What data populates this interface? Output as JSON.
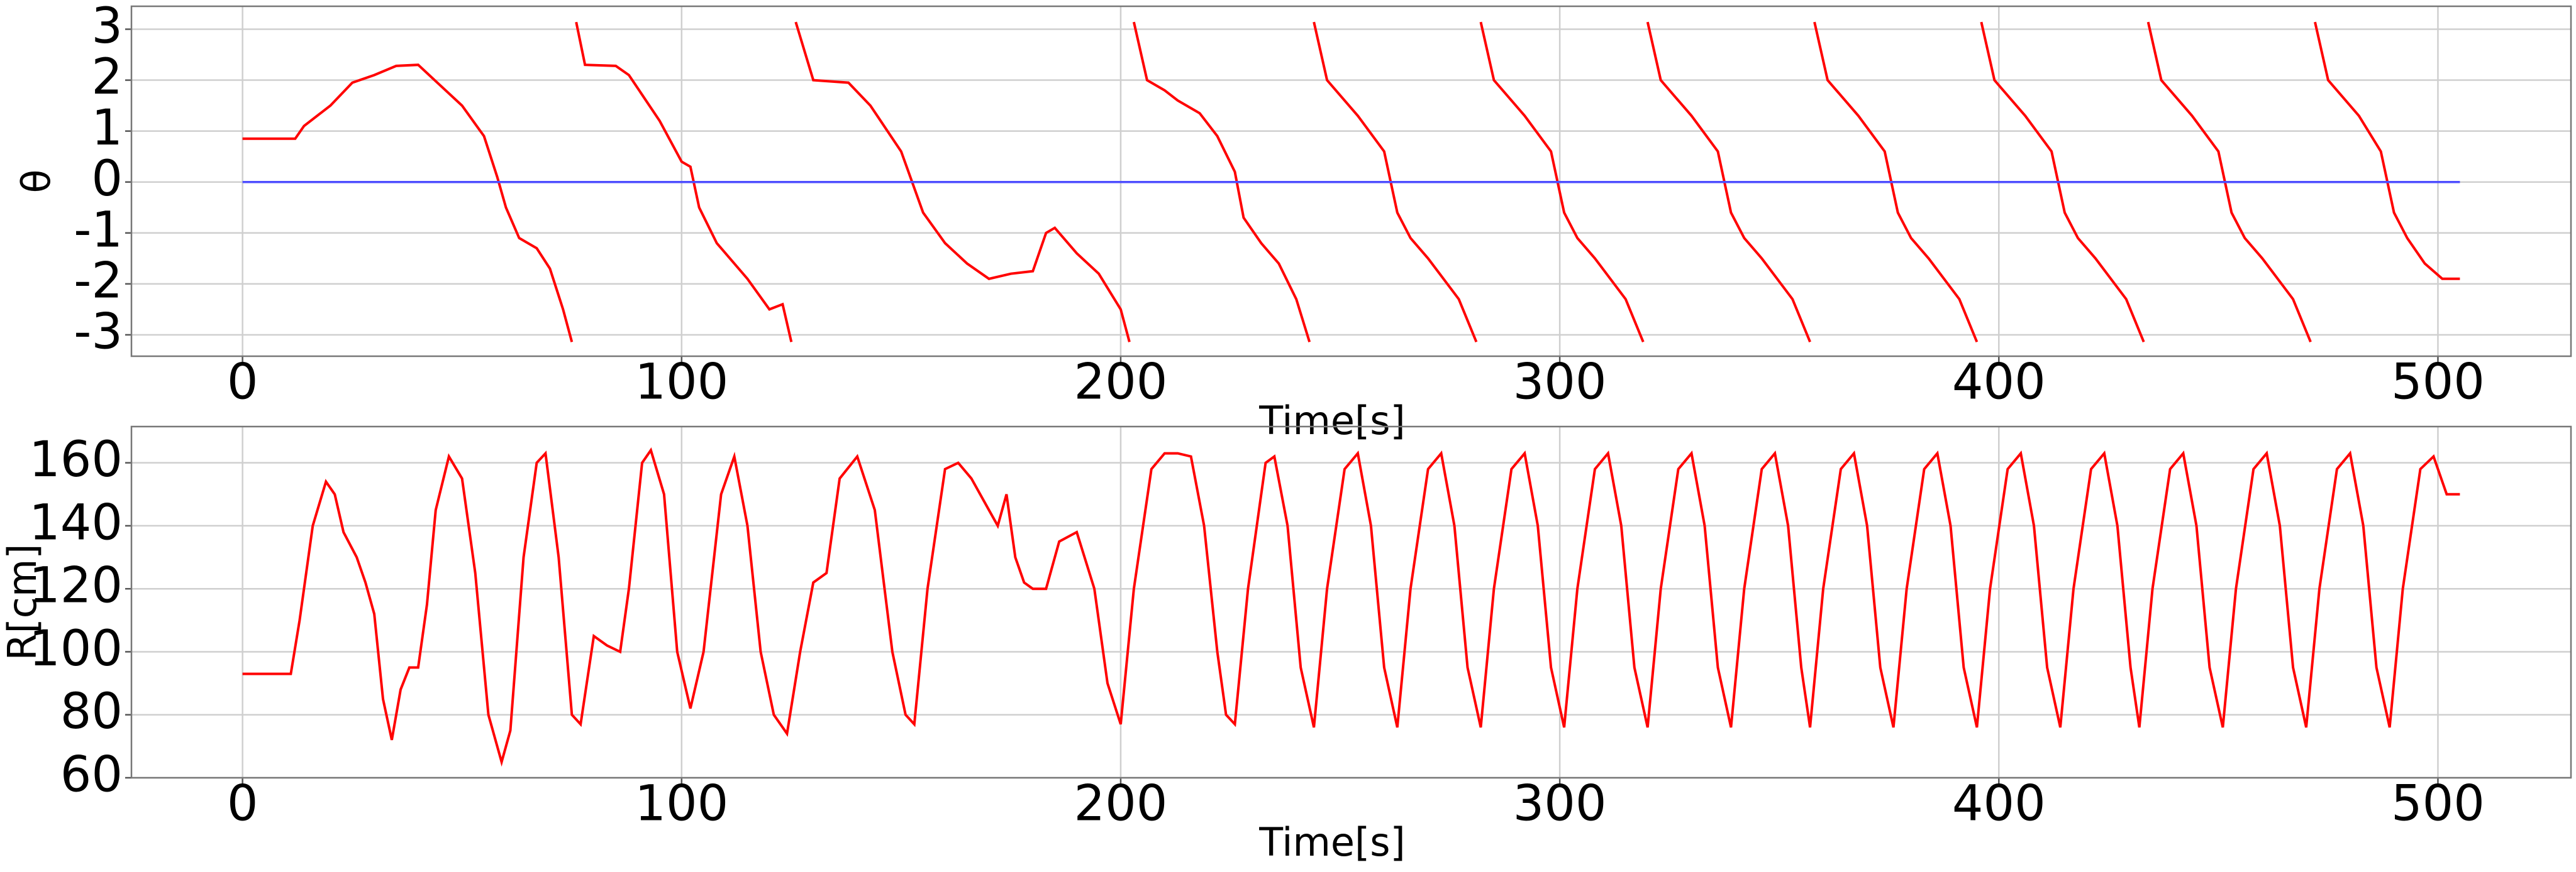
{
  "chart_data": [
    {
      "type": "line",
      "ylabel": "θ",
      "xlabel": "Time[s]",
      "grid": true,
      "xlim": [
        -25.3,
        530.3
      ],
      "ylim": [
        -3.42,
        3.45
      ],
      "xticks": [
        0,
        100,
        200,
        300,
        400,
        500
      ],
      "yticks": [
        -3,
        -2,
        -1,
        0,
        1,
        2,
        3
      ],
      "series": [
        {
          "color": "#ff0000",
          "x": [
            0,
            12,
            14,
            20,
            25,
            30,
            35,
            40,
            45,
            50,
            55,
            58,
            60,
            63,
            67,
            70,
            73,
            75,
            75,
            76,
            78,
            85,
            88,
            95,
            100,
            102,
            104,
            108,
            115,
            120,
            123,
            125,
            125,
            126,
            130,
            138,
            143,
            150,
            155,
            160,
            165,
            170,
            175,
            180,
            183,
            185,
            190,
            195,
            200,
            202,
            202,
            203,
            206,
            210,
            213,
            218,
            222,
            226,
            228,
            232,
            236,
            240,
            243,
            243,
            244,
            247,
            254,
            260,
            263,
            266,
            270,
            277,
            281,
            281,
            282,
            285,
            292,
            298,
            301,
            304,
            308,
            315,
            319,
            319,
            320,
            323,
            330,
            336,
            339,
            342,
            346,
            353,
            357,
            357,
            358,
            361,
            368,
            374,
            377,
            380,
            384,
            391,
            395,
            395,
            396,
            399,
            406,
            412,
            415,
            418,
            422,
            429,
            433,
            433,
            434,
            437,
            444,
            450,
            453,
            456,
            460,
            467,
            471,
            471,
            472,
            475,
            482,
            487,
            490,
            493,
            497,
            501,
            505
          ],
          "values": [
            0.85,
            0.85,
            1.1,
            1.5,
            1.95,
            2.1,
            2.28,
            2.3,
            1.9,
            1.5,
            0.9,
            0.1,
            -0.5,
            -1.1,
            -1.3,
            -1.7,
            -2.5,
            -3.14,
            null,
            3.14,
            2.3,
            2.28,
            2.1,
            1.2,
            0.4,
            0.3,
            -0.5,
            -1.2,
            -1.9,
            -2.5,
            -2.4,
            -3.14,
            null,
            3.14,
            2.0,
            1.95,
            1.5,
            0.6,
            -0.6,
            -1.2,
            -1.6,
            -1.9,
            -1.8,
            -1.75,
            -1.0,
            -0.9,
            -1.4,
            -1.8,
            -2.5,
            -3.14,
            null,
            3.14,
            2.0,
            1.8,
            1.6,
            1.35,
            0.9,
            0.2,
            -0.7,
            -1.2,
            -1.6,
            -2.3,
            -3.14,
            null,
            3.14,
            2.0,
            1.3,
            0.6,
            -0.6,
            -1.1,
            -1.5,
            -2.3,
            -3.14,
            null,
            3.14,
            2.0,
            1.3,
            0.6,
            -0.6,
            -1.1,
            -1.5,
            -2.3,
            -3.14,
            null,
            3.14,
            2.0,
            1.3,
            0.6,
            -0.6,
            -1.1,
            -1.5,
            -2.3,
            -3.14,
            null,
            3.14,
            2.0,
            1.3,
            0.6,
            -0.6,
            -1.1,
            -1.5,
            -2.3,
            -3.14,
            null,
            3.14,
            2.0,
            1.3,
            0.6,
            -0.6,
            -1.1,
            -1.5,
            -2.3,
            -3.14,
            null,
            3.14,
            2.0,
            1.3,
            0.6,
            -0.6,
            -1.1,
            -1.5,
            -2.3,
            -3.14,
            null,
            3.14,
            2.0,
            1.3,
            0.6,
            -0.6,
            -1.1,
            -1.6,
            -1.9,
            -1.9
          ]
        },
        {
          "color": "#4d4dff",
          "x": [
            0,
            505
          ],
          "values": [
            0,
            0
          ]
        }
      ]
    },
    {
      "type": "line",
      "ylabel": "R[cm]",
      "xlabel": "Time[s]",
      "grid": true,
      "xlim": [
        -25.3,
        530.3
      ],
      "ylim": [
        60,
        171.5
      ],
      "xticks": [
        0,
        100,
        200,
        300,
        400,
        500
      ],
      "yticks": [
        60,
        80,
        100,
        120,
        140,
        160
      ],
      "series": [
        {
          "color": "#ff0000",
          "x": [
            0,
            11,
            13,
            16,
            19,
            21,
            23,
            26,
            28,
            30,
            32,
            34,
            36,
            38,
            40,
            42,
            44,
            47,
            50,
            53,
            56,
            59,
            61,
            64,
            67,
            69,
            72,
            75,
            77,
            80,
            83,
            86,
            88,
            91,
            93,
            96,
            99,
            102,
            105,
            109,
            112,
            115,
            118,
            121,
            124,
            127,
            130,
            133,
            136,
            140,
            144,
            148,
            151,
            153,
            156,
            160,
            163,
            166,
            170,
            172,
            174,
            176,
            178,
            180,
            183,
            186,
            190,
            194,
            197,
            200,
            203,
            207,
            210,
            213,
            216,
            219,
            222,
            224,
            226,
            229,
            233,
            235,
            238,
            241,
            244,
            247,
            251,
            254,
            257,
            260,
            263,
            266,
            270,
            273,
            276,
            279,
            282,
            285,
            289,
            292,
            295,
            298,
            301,
            304,
            308,
            311,
            314,
            317,
            320,
            323,
            327,
            330,
            333,
            336,
            339,
            342,
            346,
            349,
            352,
            355,
            357,
            360,
            364,
            367,
            370,
            373,
            376,
            379,
            383,
            386,
            389,
            392,
            395,
            398,
            402,
            405,
            408,
            411,
            414,
            417,
            421,
            424,
            427,
            430,
            432,
            435,
            439,
            442,
            445,
            448,
            451,
            454,
            458,
            461,
            464,
            467,
            470,
            473,
            477,
            480,
            483,
            486,
            489,
            492,
            496,
            499,
            502,
            505
          ],
          "values": [
            93,
            93,
            110,
            140,
            154,
            150,
            138,
            130,
            122,
            112,
            85,
            72,
            88,
            95,
            95,
            115,
            145,
            162,
            155,
            125,
            80,
            65,
            75,
            130,
            160,
            163,
            130,
            80,
            77,
            105,
            102,
            100,
            120,
            160,
            164,
            150,
            100,
            82,
            100,
            150,
            162,
            140,
            100,
            80,
            74,
            100,
            122,
            125,
            155,
            162,
            145,
            100,
            80,
            77,
            120,
            158,
            160,
            155,
            145,
            140,
            150,
            130,
            122,
            120,
            120,
            135,
            138,
            120,
            90,
            77,
            120,
            158,
            163,
            163,
            162,
            140,
            100,
            80,
            77,
            120,
            160,
            162,
            140,
            95,
            76,
            120,
            158,
            163,
            140,
            95,
            76,
            120,
            158,
            163,
            140,
            95,
            76,
            120,
            158,
            163,
            140,
            95,
            76,
            120,
            158,
            163,
            140,
            95,
            76,
            120,
            158,
            163,
            140,
            95,
            76,
            120,
            158,
            163,
            140,
            95,
            76,
            120,
            158,
            163,
            140,
            95,
            76,
            120,
            158,
            163,
            140,
            95,
            76,
            120,
            158,
            163,
            140,
            95,
            76,
            120,
            158,
            163,
            140,
            95,
            76,
            120,
            158,
            163,
            140,
            95,
            76,
            120,
            158,
            163,
            140,
            95,
            76,
            120,
            158,
            163,
            140,
            95,
            76,
            120,
            158,
            162,
            150,
            150
          ]
        }
      ]
    }
  ]
}
